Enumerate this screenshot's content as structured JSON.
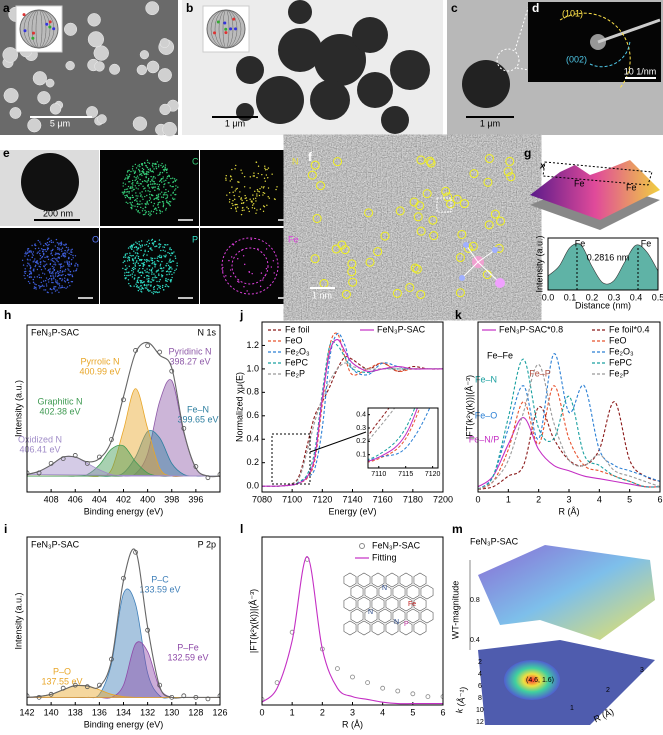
{
  "figure": {
    "a": {
      "label": "a",
      "scale": "5 μm"
    },
    "b": {
      "label": "b",
      "scale": "1 μm"
    },
    "c": {
      "label": "c",
      "scale": "1 μm"
    },
    "d": {
      "label": "d",
      "rings": [
        "(101)",
        "(002)"
      ],
      "scale": "10 1/nm"
    },
    "e": {
      "label": "e",
      "scale": "200 nm",
      "maps": [
        "C",
        "N",
        "O",
        "P",
        "Fe"
      ]
    },
    "f": {
      "label": "f",
      "scale": "1 nm"
    },
    "g": {
      "label": "g",
      "axis": "x",
      "atoms": [
        "Fe",
        "Fe"
      ]
    },
    "l": {
      "atoms": [
        "N",
        "N",
        "N",
        "Fe",
        "P"
      ]
    },
    "m": {
      "label": "m",
      "title": "FeN₃P-SAC",
      "zlabel": "WT-magnitude",
      "zticks": [
        "0.4",
        "0.8"
      ],
      "xlabel": "k (Å⁻¹)",
      "xticks": [
        "2",
        "4",
        "6",
        "8",
        "10",
        "12"
      ],
      "ylabel": "R (Å)",
      "yticks": [
        "1",
        "2",
        "3"
      ],
      "peak": "(4.6, 1.6)"
    }
  },
  "chart_data": [
    {
      "type": "area",
      "xlabel": "Distance (nm)",
      "ylabel": "Intensity (a.u.)",
      "annotations": [
        "Fe",
        "Fe",
        "0.2816 nm"
      ],
      "x": [
        0,
        0.05,
        0.1,
        0.15,
        0.2,
        0.25,
        0.3,
        0.35,
        0.4,
        0.45,
        0.5
      ],
      "values": [
        0.3,
        0.5,
        0.9,
        0.95,
        0.5,
        0.15,
        0.2,
        0.6,
        0.95,
        0.8,
        0.4
      ],
      "color": "#5fb3a6",
      "xlim": [
        0,
        0.5
      ],
      "ylim": [
        0,
        1.1
      ],
      "xticks": [
        {
          "value": 0,
          "label": "0.0"
        },
        0.1,
        0.2,
        0.3,
        0.4,
        0.5
      ]
    },
    {
      "type": "xps",
      "label": "h",
      "title": "FeN₃P-SAC",
      "subtitle": "N 1s",
      "xlabel": "Binding energy (eV)",
      "ylabel": "Intensity (a.u.)",
      "x": [
        394,
        395,
        396,
        397,
        398,
        399,
        400,
        401,
        402,
        403,
        404,
        405,
        406,
        407,
        408,
        409,
        410
      ],
      "xlim": [
        410,
        394
      ],
      "ylim": [
        0,
        1.05
      ],
      "xticks": [
        408,
        406,
        404,
        402,
        400,
        398,
        396
      ],
      "series": [
        {
          "name": "Pyridinic N",
          "label": "398.27 eV",
          "color": "#8e5aa8",
          "values": [
            0.1,
            0.1,
            0.15,
            0.37,
            0.7,
            0.57,
            0.24,
            0.115,
            0.1,
            0.1,
            0.1,
            0.1,
            0.1,
            0.1,
            0.1,
            0.1,
            0.1
          ]
        },
        {
          "name": "Fe–N",
          "label": "399.65 eV",
          "color": "#2e7fa0",
          "values": [
            0.1,
            0.1,
            0.1,
            0.11,
            0.18,
            0.34,
            0.38,
            0.22,
            0.12,
            0.1,
            0.1,
            0.1,
            0.1,
            0.1,
            0.1,
            0.1,
            0.1
          ]
        },
        {
          "name": "Pyrrolic N",
          "label": "400.99 eV",
          "color": "#e8a628",
          "values": [
            0.1,
            0.1,
            0.1,
            0.1,
            0.1,
            0.15,
            0.4,
            0.65,
            0.39,
            0.14,
            0.1,
            0.1,
            0.1,
            0.1,
            0.1,
            0.1,
            0.1
          ]
        },
        {
          "name": "Graphitic N",
          "label": "402.38 eV",
          "color": "#3f9a52",
          "values": [
            0.1,
            0.1,
            0.1,
            0.1,
            0.1,
            0.1,
            0.12,
            0.19,
            0.29,
            0.27,
            0.17,
            0.11,
            0.1,
            0.1,
            0.1,
            0.1,
            0.1
          ]
        },
        {
          "name": "Oxidized N",
          "label": "406.41 eV",
          "color": "#a08cc8",
          "values": [
            0.1,
            0.1,
            0.1,
            0.1,
            0.1,
            0.1,
            0.1,
            0.1,
            0.1,
            0.11,
            0.14,
            0.18,
            0.22,
            0.22,
            0.17,
            0.13,
            0.11
          ]
        },
        {
          "color": "#666666",
          "values": [
            0.1,
            0.1,
            0.15,
            0.38,
            0.78,
            0.86,
            0.94,
            0.875,
            0.6,
            0.32,
            0.21,
            0.19,
            0.22,
            0.22,
            0.17,
            0.13,
            0.11
          ]
        },
        {
          "color": "#555555",
          "marker": "circle",
          "values": [
            0.11,
            0.09,
            0.16,
            0.4,
            0.76,
            0.88,
            0.92,
            0.89,
            0.58,
            0.33,
            0.22,
            0.18,
            0.23,
            0.21,
            0.18,
            0.12,
            0.12
          ]
        }
      ]
    },
    {
      "type": "xps",
      "label": "i",
      "title": "FeN₃P-SAC",
      "subtitle": "P 2p",
      "xlabel": "Binding energy (eV)",
      "ylabel": "Intensity (a.u.)",
      "x": [
        126,
        127,
        128,
        129,
        130,
        131,
        132,
        133,
        134,
        135,
        136,
        137,
        138,
        139,
        140,
        141,
        142
      ],
      "xlim": [
        142,
        126
      ],
      "ylim": [
        0,
        1.1
      ],
      "xticks": [
        142,
        140,
        138,
        136,
        134,
        132,
        130,
        128,
        126
      ],
      "series": [
        {
          "name": "P–C",
          "label": "133.59 eV",
          "color": "#3f7fb8",
          "values": [
            0.05,
            0.05,
            0.05,
            0.05,
            0.05,
            0.06,
            0.21,
            0.66,
            0.73,
            0.27,
            0.07,
            0.05,
            0.05,
            0.05,
            0.05,
            0.05,
            0.05
          ]
        },
        {
          "name": "P–Fe",
          "label": "132.59 eV",
          "color": "#8e4aa8",
          "values": [
            0.05,
            0.05,
            0.05,
            0.05,
            0.05,
            0.11,
            0.35,
            0.4,
            0.13,
            0.05,
            0.05,
            0.05,
            0.05,
            0.05,
            0.05,
            0.05,
            0.05
          ]
        },
        {
          "name": "P–O",
          "label": "137.55 eV",
          "color": "#e8a628",
          "values": [
            0.05,
            0.05,
            0.05,
            0.05,
            0.05,
            0.05,
            0.05,
            0.05,
            0.055,
            0.07,
            0.1,
            0.125,
            0.127,
            0.1,
            0.07,
            0.056,
            0.05
          ]
        },
        {
          "color": "#666666",
          "values": [
            0.05,
            0.05,
            0.05,
            0.05,
            0.05,
            0.12,
            0.51,
            1.01,
            0.815,
            0.29,
            0.12,
            0.125,
            0.127,
            0.1,
            0.07,
            0.056,
            0.05
          ]
        },
        {
          "color": "#555555",
          "marker": "circle",
          "values": [
            0.06,
            0.04,
            0.05,
            0.06,
            0.05,
            0.13,
            0.49,
            1.0,
            0.83,
            0.3,
            0.13,
            0.12,
            0.13,
            0.11,
            0.07,
            0.05,
            0.06
          ]
        }
      ]
    },
    {
      "type": "line",
      "label": "j",
      "xlabel": "Energy (eV)",
      "ylabel": "Normalized χμ(E)",
      "x": [
        7080,
        7090,
        7100,
        7105,
        7110,
        7115,
        7120,
        7125,
        7130,
        7135,
        7140,
        7150,
        7160,
        7170,
        7180,
        7190,
        7200
      ],
      "xlim": [
        7080,
        7200
      ],
      "ylim": [
        -0.05,
        1.4
      ],
      "xticks": [
        7080,
        7100,
        7120,
        7140,
        7160,
        7180,
        7200
      ],
      "yticks": [
        {
          "value": 0,
          "label": "0.0"
        },
        0.2,
        0.4,
        0.6,
        0.8,
        {
          "value": 1,
          "label": "1.0"
        },
        1.2
      ],
      "series": [
        {
          "name": "Fe foil",
          "color": "#8b1a1a",
          "dash": true,
          "values": [
            0,
            0,
            0.02,
            0.1,
            0.35,
            0.6,
            0.72,
            0.85,
            1.0,
            1.1,
            1.08,
            1.0,
            1.05,
            0.98,
            1.02,
            1.0,
            1.0
          ]
        },
        {
          "name": "FeO",
          "color": "#e8532f",
          "dash": true,
          "values": [
            0,
            0,
            0.01,
            0.03,
            0.07,
            0.22,
            0.7,
            1.2,
            1.3,
            1.1,
            0.95,
            1.0,
            1.05,
            0.98,
            1.0,
            1.0,
            1.0
          ]
        },
        {
          "name": "Fe₂O₃",
          "color": "#2a7fd4",
          "dash": true,
          "values": [
            0,
            0,
            0.01,
            0.03,
            0.08,
            0.15,
            0.5,
            1.1,
            1.3,
            1.2,
            1.0,
            0.95,
            1.05,
            1.02,
            1.0,
            1.0,
            1.0
          ]
        },
        {
          "name": "FePC",
          "color": "#1aa0a0",
          "dash": true,
          "values": [
            0,
            0,
            0.01,
            0.04,
            0.1,
            0.3,
            0.8,
            1.2,
            1.2,
            1.1,
            1.0,
            0.97,
            1.0,
            1.0,
            1.0,
            1.0,
            1.0
          ]
        },
        {
          "name": "Fe₂P",
          "color": "#999999",
          "dash": true,
          "values": [
            0,
            0,
            0.02,
            0.08,
            0.3,
            0.55,
            0.75,
            0.9,
            1.0,
            1.05,
            1.02,
            1.0,
            1.0,
            1.0,
            1.0,
            1.0,
            1.0
          ]
        },
        {
          "name": "FeN₃P-SAC",
          "color": "#c42fc4",
          "values": [
            0,
            0,
            0.01,
            0.03,
            0.08,
            0.25,
            0.75,
            1.15,
            1.25,
            1.15,
            1.05,
            0.98,
            1.0,
            1.02,
            1.0,
            1.0,
            1.0
          ]
        }
      ],
      "inset": {
        "xlim": [
          7108,
          7121
        ],
        "ylim": [
          0,
          0.45
        ],
        "xticks": [
          7110,
          7115,
          7120
        ],
        "yticks": [
          0.1,
          0.2,
          0.3,
          0.4
        ]
      }
    },
    {
      "type": "line",
      "label": "k",
      "xlabel": "R (Å)",
      "ylabel": "|FT(k²χ(k))|(Å⁻³)",
      "annotations": [
        "Fe–Fe",
        "Fe–P",
        "Fe–N",
        "Fe–O",
        "Fe–N/P"
      ],
      "x": [
        0,
        0.5,
        1,
        1.5,
        2,
        2.5,
        3,
        3.5,
        4,
        4.5,
        5,
        5.5,
        6
      ],
      "xlim": [
        0,
        6
      ],
      "ylim": [
        0,
        3.2
      ],
      "xticks": [
        0,
        1,
        2,
        3,
        4,
        5,
        6
      ],
      "series": [
        {
          "name": "FeN₃P-SAC*0.8",
          "color": "#c42fc4",
          "values": [
            0.1,
            0.3,
            0.9,
            1.4,
            0.8,
            0.5,
            0.4,
            0.3,
            0.25,
            0.2,
            0.15,
            0.1,
            0.1
          ]
        },
        {
          "name": "Fe foil*0.4",
          "color": "#8b1a1a",
          "dash": true,
          "values": [
            0.05,
            0.1,
            0.3,
            0.5,
            1.6,
            1.0,
            0.6,
            0.5,
            0.8,
            1.7,
            0.6,
            0.3,
            0.2
          ]
        },
        {
          "name": "FeO",
          "color": "#e8532f",
          "dash": true,
          "values": [
            0.05,
            0.2,
            0.8,
            1.7,
            0.9,
            2.0,
            1.0,
            0.5,
            0.4,
            0.3,
            0.2,
            0.1,
            0.1
          ]
        },
        {
          "name": "Fe₂O₃",
          "color": "#2a7fd4",
          "dash": true,
          "values": [
            0.05,
            0.3,
            1.2,
            2.0,
            1.0,
            2.6,
            1.5,
            2.0,
            0.8,
            0.5,
            0.4,
            0.3,
            0.2
          ]
        },
        {
          "name": "FePC",
          "color": "#1aa0a0",
          "dash": true,
          "values": [
            0.05,
            0.3,
            1.4,
            2.5,
            1.2,
            1.0,
            1.8,
            0.7,
            0.5,
            0.3,
            0.2,
            0.1,
            0.1
          ]
        },
        {
          "name": "Fe₂P",
          "color": "#999999",
          "dash": true,
          "values": [
            0.05,
            0.2,
            0.6,
            1.5,
            2.4,
            1.3,
            0.6,
            0.5,
            0.7,
            0.4,
            0.3,
            0.2,
            0.1
          ]
        }
      ]
    },
    {
      "type": "line",
      "label": "l",
      "xlabel": "R (Å)",
      "ylabel": "|FT(k²χ(k))|(Å⁻³)",
      "x": [
        0,
        0.5,
        1,
        1.5,
        2,
        2.5,
        3,
        3.5,
        4,
        4.5,
        5,
        5.5,
        6
      ],
      "xlim": [
        0,
        6
      ],
      "ylim": [
        0,
        6
      ],
      "xticks": [
        0,
        1,
        2,
        3,
        4,
        5,
        6
      ],
      "series": [
        {
          "name": "FeN₃P-SAC",
          "color": "#888888",
          "marker": "circle",
          "values": [
            0.2,
            0.8,
            2.6,
            5.2,
            2.0,
            1.3,
            1.0,
            0.8,
            0.6,
            0.5,
            0.4,
            0.3,
            0.3
          ]
        },
        {
          "name": "Fitting",
          "color": "#c42fc4",
          "values": [
            0.1,
            0.6,
            2.3,
            5.3,
            2.0,
            0.6,
            0.3,
            0.2,
            0.1,
            0.05,
            0.05,
            0.05,
            0.05
          ]
        }
      ]
    }
  ]
}
